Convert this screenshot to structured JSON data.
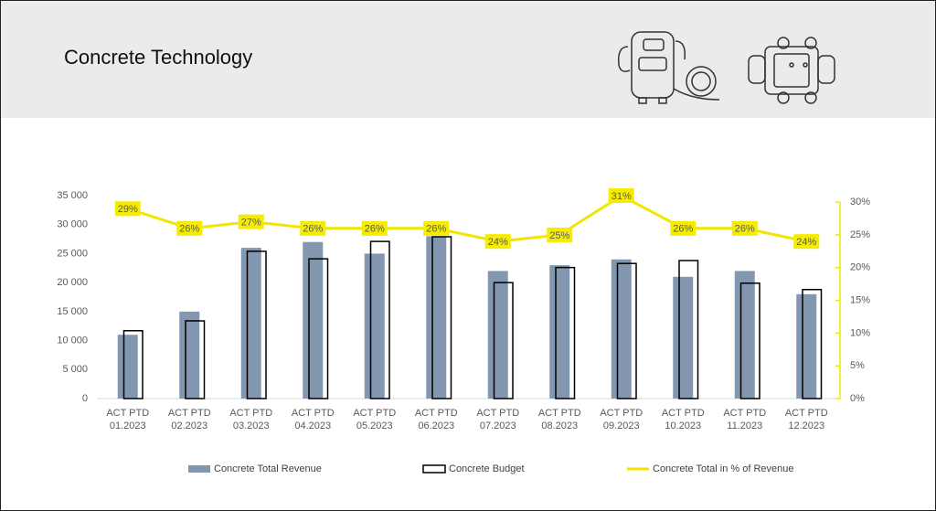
{
  "title": "Concrete Technology",
  "chart_data": {
    "type": "bar",
    "categories": [
      "ACT PTD 01.2023",
      "ACT PTD 02.2023",
      "ACT PTD 03.2023",
      "ACT PTD 04.2023",
      "ACT PTD 05.2023",
      "ACT PTD 06.2023",
      "ACT PTD 07.2023",
      "ACT PTD 08.2023",
      "ACT PTD 09.2023",
      "ACT PTD 10.2023",
      "ACT PTD 11.2023",
      "ACT PTD 12.2023"
    ],
    "series": [
      {
        "name": "Concrete Total Revenue",
        "type": "bar",
        "fill": true,
        "color": "#8497b0",
        "values": [
          11000,
          15000,
          26000,
          27000,
          25000,
          28000,
          22000,
          23000,
          24000,
          21000,
          22000,
          18000
        ]
      },
      {
        "name": "Concrete Budget",
        "type": "bar",
        "fill": false,
        "color": "#000000",
        "values": [
          11700,
          13400,
          25400,
          24100,
          27100,
          27900,
          20000,
          22600,
          23300,
          23800,
          19900,
          18800
        ]
      },
      {
        "name": "Concrete Total in % of Revenue",
        "type": "line",
        "axis": "y2",
        "color": "#f2e600",
        "values": [
          29,
          26,
          27,
          26,
          26,
          26,
          24,
          25,
          31,
          26,
          26,
          24
        ],
        "value_labels": [
          "29%",
          "26%",
          "27%",
          "26%",
          "26%",
          "26%",
          "24%",
          "25%",
          "31%",
          "26%",
          "26%",
          "24%"
        ]
      }
    ],
    "ylim": [
      0,
      35000
    ],
    "yticks": [
      0,
      {
        "value": 5000,
        "label": "5 000"
      },
      {
        "value": 10000,
        "label": "10 000"
      },
      {
        "value": 15000,
        "label": "15 000"
      },
      {
        "value": 20000,
        "label": "20 000"
      },
      {
        "value": 25000,
        "label": "25 000"
      },
      {
        "value": 30000,
        "label": "30 000"
      },
      {
        "value": 35000,
        "label": "35 000"
      }
    ],
    "y2lim": [
      0,
      31
    ],
    "y2ticks": [
      {
        "value": 0,
        "label": "0%"
      },
      {
        "value": 5,
        "label": "5%"
      },
      {
        "value": 10,
        "label": "10%"
      },
      {
        "value": 15,
        "label": "15%"
      },
      {
        "value": 20,
        "label": "20%"
      },
      {
        "value": 25,
        "label": "25%"
      },
      {
        "value": 30,
        "label": "30%"
      }
    ],
    "legend": "bottom"
  }
}
